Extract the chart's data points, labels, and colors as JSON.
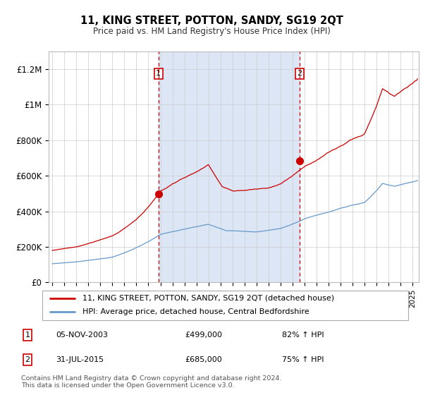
{
  "title": "11, KING STREET, POTTON, SANDY, SG19 2QT",
  "subtitle": "Price paid vs. HM Land Registry's House Price Index (HPI)",
  "ylabel_ticks": [
    "£0",
    "£200K",
    "£400K",
    "£600K",
    "£800K",
    "£1M",
    "£1.2M"
  ],
  "ytick_values": [
    0,
    200000,
    400000,
    600000,
    800000,
    1000000,
    1200000
  ],
  "ylim": [
    0,
    1300000
  ],
  "xlim_start": 1994.7,
  "xlim_end": 2025.5,
  "purchase1_x": 2003.84,
  "purchase1_y": 499000,
  "purchase2_x": 2015.58,
  "purchase2_y": 685000,
  "purchase1_label": "05-NOV-2003",
  "purchase1_price": "£499,000",
  "purchase1_hpi": "82% ↑ HPI",
  "purchase2_label": "31-JUL-2015",
  "purchase2_price": "£685,000",
  "purchase2_hpi": "75% ↑ HPI",
  "legend_line1": "11, KING STREET, POTTON, SANDY, SG19 2QT (detached house)",
  "legend_line2": "HPI: Average price, detached house, Central Bedfordshire",
  "footnote": "Contains HM Land Registry data © Crown copyright and database right 2024.\nThis data is licensed under the Open Government Licence v3.0.",
  "line_color_red": "#cc0000",
  "line_color_blue": "#6699cc",
  "bg_shaded": "#dce6f5",
  "grid_color": "#cccccc"
}
